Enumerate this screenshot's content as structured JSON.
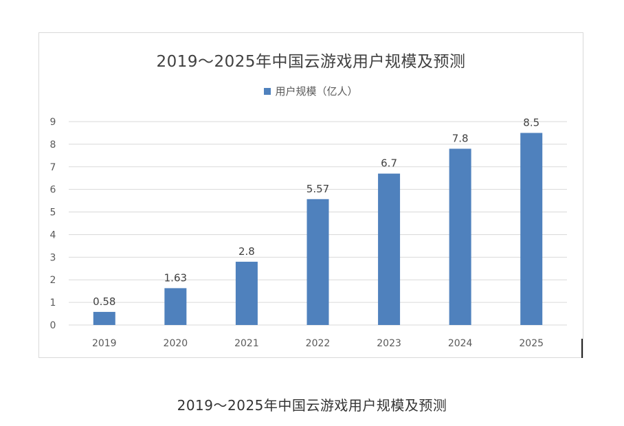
{
  "caption": "2019～2025年中国云游戏用户规模及预测",
  "colors": {
    "bar": "#4f81bd",
    "grid": "#d9d9d9",
    "axis_text": "#595959",
    "title": "#404040"
  },
  "chart_data": {
    "type": "bar",
    "title": "2019～2025年中国云游戏用户规模及预测",
    "xlabel": "",
    "ylabel": "",
    "categories": [
      "2019",
      "2020",
      "2021",
      "2022",
      "2023",
      "2024",
      "2025"
    ],
    "series": [
      {
        "name": "用户规模（亿人）",
        "values": [
          0.58,
          1.63,
          2.8,
          5.57,
          6.7,
          7.8,
          8.5
        ],
        "labels": [
          "0.58",
          "1.63",
          "2.8",
          "5.57",
          "6.7",
          "7.8",
          "8.5"
        ]
      }
    ],
    "ylim": [
      0,
      9
    ],
    "yticks": [
      "0",
      "1",
      "2",
      "3",
      "4",
      "5",
      "6",
      "7",
      "8",
      "9"
    ],
    "grid": true,
    "legend_position": "top"
  }
}
